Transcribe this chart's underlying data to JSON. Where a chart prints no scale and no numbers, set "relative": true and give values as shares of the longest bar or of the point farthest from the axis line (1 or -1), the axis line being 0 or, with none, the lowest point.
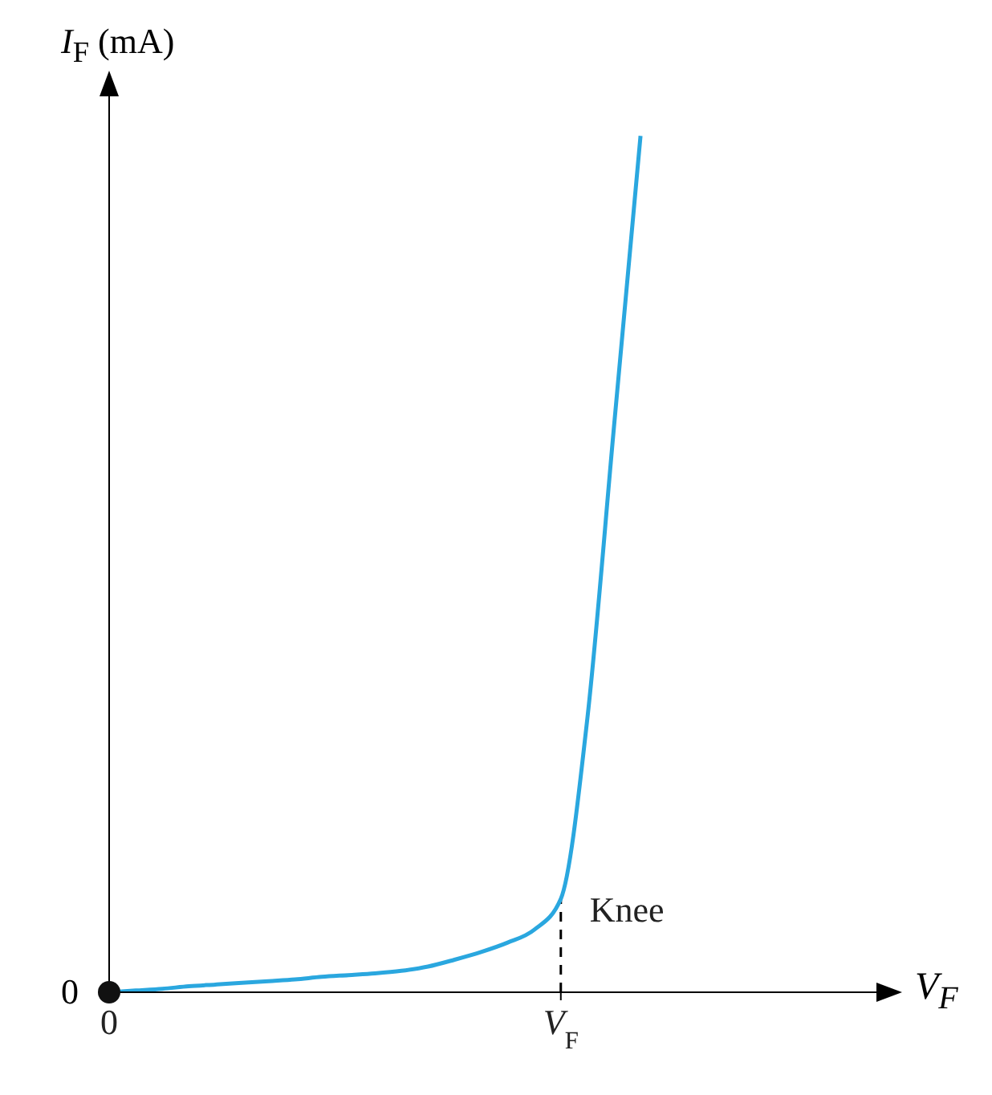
{
  "chart_data": {
    "type": "line",
    "relative": true,
    "xlabel": "V$_{F}$",
    "ylabel": "I$_{F}$ (mA)",
    "categories": [
      "0",
      null,
      null,
      null,
      null,
      null,
      null,
      null,
      null,
      null,
      null,
      null,
      null,
      null,
      null,
      null,
      null,
      "V$_{F}$",
      null,
      null,
      null,
      null,
      null,
      null,
      null,
      null,
      null,
      null,
      null,
      null
    ],
    "series": [
      {
        "color": "#2aa7df",
        "values": [
          0,
          0.002,
          0.004,
          0.007,
          0.009,
          0.011,
          0.013,
          0.015,
          0.018,
          0.02,
          0.022,
          0.025,
          0.03,
          0.038,
          0.047,
          0.058,
          0.073,
          0.109,
          0.32,
          0.66,
          1,
          null,
          null,
          null,
          null,
          null,
          null,
          null,
          null,
          null
        ]
      }
    ],
    "ref_lines": [
      {
        "axis": "x",
        "value": "V$_{F}$",
        "line_style": "dashed",
        "color": "#000000"
      }
    ],
    "annotations": [
      "0",
      {
        "text": "Knee",
        "x": "V$_{F}$",
        "y": 0.109
      }
    ],
    "marker": "none",
    "line_style": "solid"
  }
}
